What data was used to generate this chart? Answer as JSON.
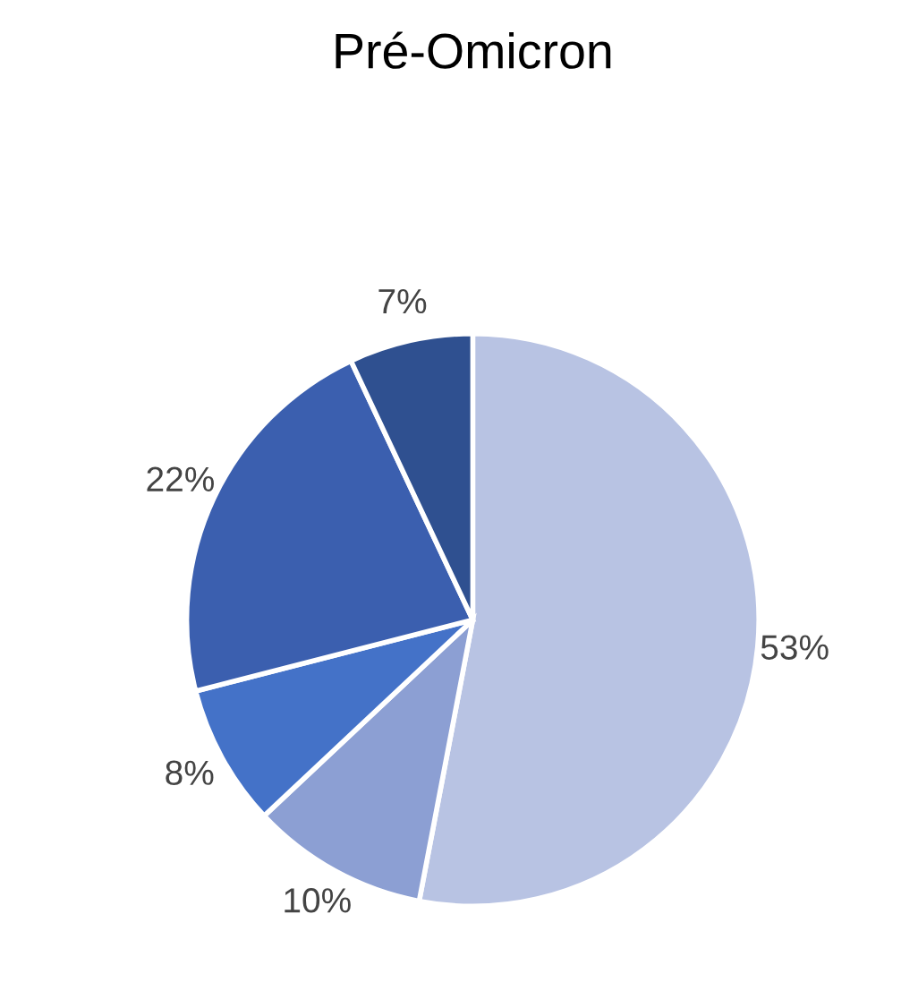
{
  "chart_data": {
    "type": "pie",
    "title": "Pré-Omicron",
    "categories": [
      null,
      null,
      null,
      null,
      null
    ],
    "values": [
      53,
      10,
      8,
      22,
      7
    ],
    "value_labels": [
      "53%",
      "10%",
      "8%",
      "22%",
      "7%"
    ],
    "colors": [
      "#b8c3e3",
      "#8c9fd3",
      "#4472c8",
      "#3b5faf",
      "#2f5090"
    ]
  }
}
